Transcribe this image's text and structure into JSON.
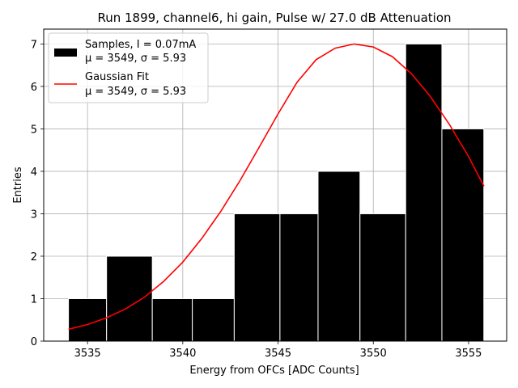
{
  "chart_data": {
    "type": "bar",
    "title": "Run 1899, channel6, hi gain, Pulse w/ 27.0 dB Attenuation",
    "xlabel": "Energy from OFCs [ADC Counts]",
    "ylabel": "Entries",
    "xlim": [
      3532.7,
      3557.0
    ],
    "ylim": [
      0,
      7.35
    ],
    "xticks": [
      3535,
      3540,
      3545,
      3550,
      3555
    ],
    "yticks": [
      0,
      1,
      2,
      3,
      4,
      5,
      6,
      7
    ],
    "grid": true,
    "legend_position": "top-left",
    "histogram": {
      "name": "Samples, I = 0.07mA",
      "stats": "μ = 3549, σ = 5.93",
      "color": "#000000",
      "edgecolor": "#ffffff",
      "bins": [
        {
          "x0": 3534.0,
          "x1": 3536.0,
          "count": 1
        },
        {
          "x0": 3536.0,
          "x1": 3538.4,
          "count": 2
        },
        {
          "x0": 3538.4,
          "x1": 3540.5,
          "count": 1
        },
        {
          "x0": 3540.5,
          "x1": 3542.7,
          "count": 1
        },
        {
          "x0": 3542.7,
          "x1": 3545.1,
          "count": 3
        },
        {
          "x0": 3545.1,
          "x1": 3547.1,
          "count": 3
        },
        {
          "x0": 3547.1,
          "x1": 3549.3,
          "count": 4
        },
        {
          "x0": 3549.3,
          "x1": 3551.7,
          "count": 3
        },
        {
          "x0": 3551.7,
          "x1": 3553.6,
          "count": 7
        },
        {
          "x0": 3553.6,
          "x1": 3555.8,
          "count": 5
        }
      ]
    },
    "fit": {
      "name": "Gaussian Fit",
      "stats": "μ = 3549, σ = 5.93",
      "color": "#ff0000",
      "x": [
        3534.0,
        3535.0,
        3536.0,
        3537.0,
        3538.0,
        3539.0,
        3540.0,
        3541.0,
        3542.0,
        3543.0,
        3544.0,
        3545.0,
        3546.0,
        3547.0,
        3548.0,
        3549.0,
        3550.0,
        3551.0,
        3552.0,
        3553.0,
        3554.0,
        3555.0,
        3555.8
      ],
      "y": [
        0.28,
        0.39,
        0.55,
        0.76,
        1.04,
        1.41,
        1.86,
        2.42,
        3.06,
        3.78,
        4.56,
        5.35,
        6.1,
        6.63,
        6.9,
        7.0,
        6.93,
        6.7,
        6.3,
        5.76,
        5.1,
        4.35,
        3.65
      ]
    }
  }
}
